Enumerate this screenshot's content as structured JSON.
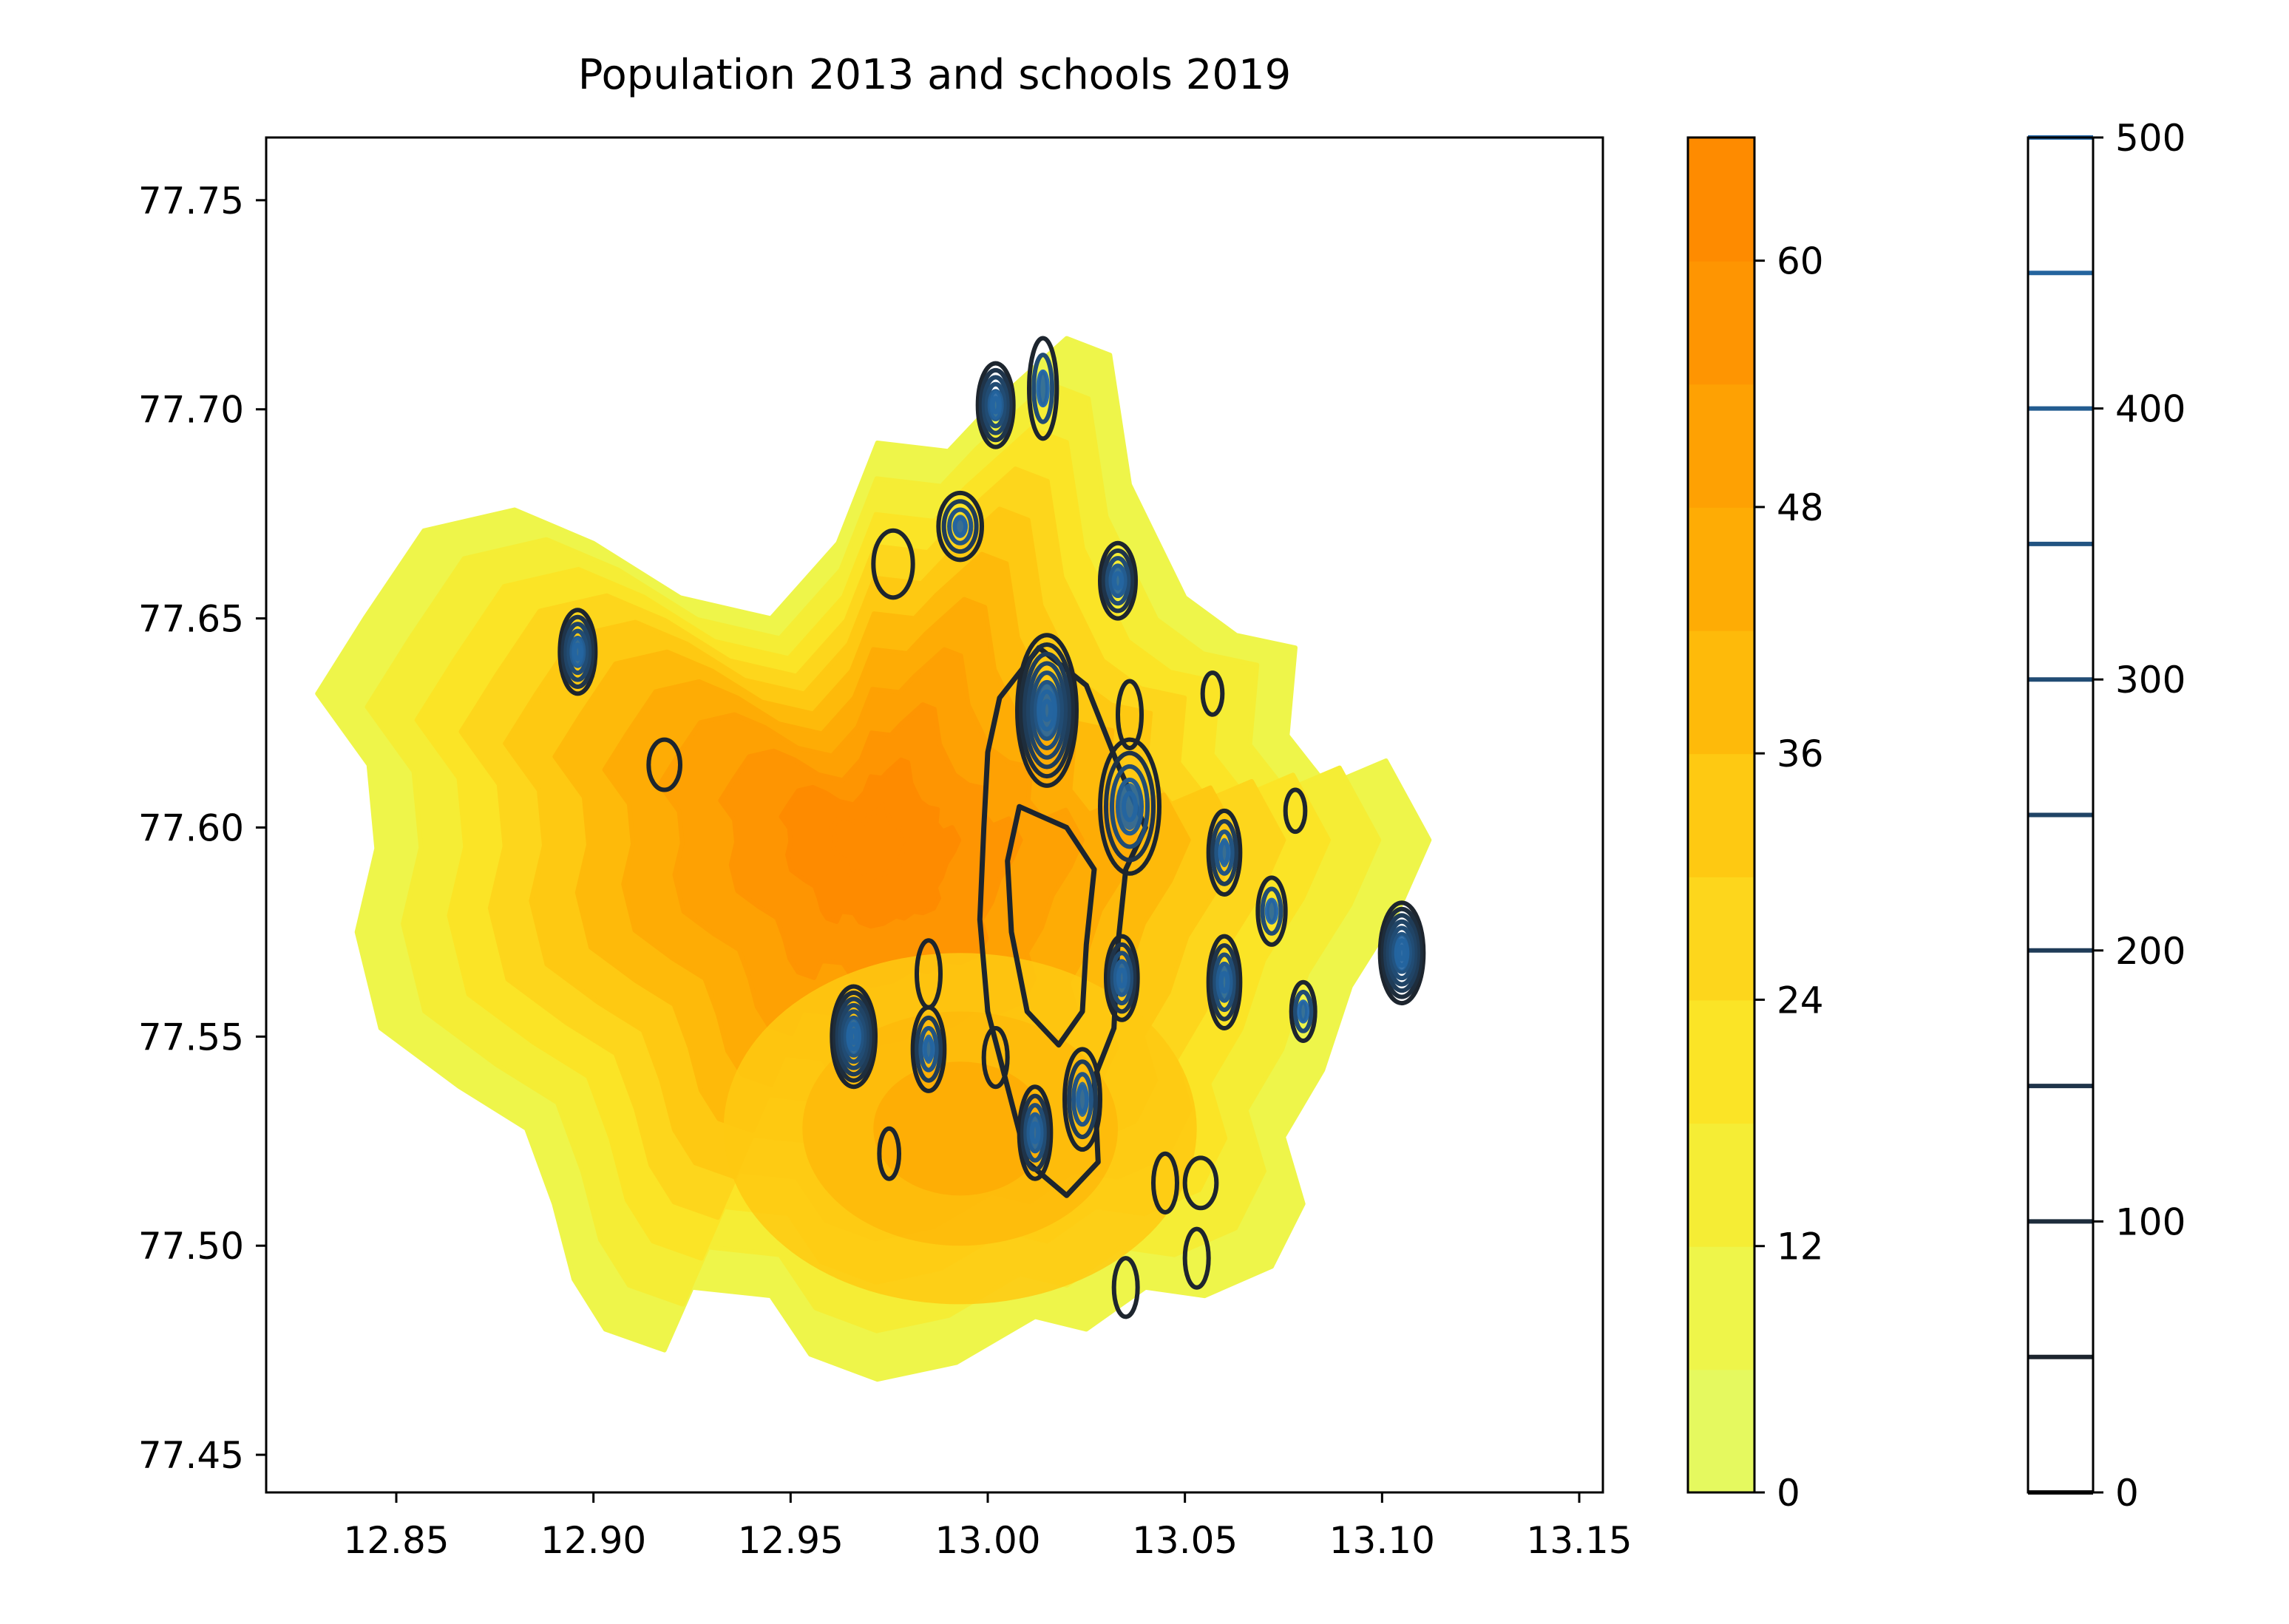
{
  "chart_data": {
    "type": "heatmap",
    "title": "Population 2013 and schools 2019",
    "xlabel": "",
    "ylabel": "",
    "xlim": [
      12.817,
      13.156
    ],
    "ylim": [
      77.441,
      77.765
    ],
    "x_ticks": [
      "12.85",
      "12.90",
      "12.95",
      "13.00",
      "13.05",
      "13.10",
      "13.15"
    ],
    "x_tick_values": [
      12.85,
      12.9,
      12.95,
      13.0,
      13.05,
      13.1,
      13.15
    ],
    "y_ticks": [
      "77.45",
      "77.50",
      "77.55",
      "77.60",
      "77.65",
      "77.70",
      "77.75"
    ],
    "y_tick_values": [
      77.45,
      77.5,
      77.55,
      77.6,
      77.65,
      77.7,
      77.75
    ],
    "grid": false,
    "layers": [
      {
        "name": "population 2013",
        "kind": "filled density contours",
        "colormap": "yellow-to-orange",
        "peak": {
          "x": 12.97,
          "y": 77.597
        },
        "secondary_peak": {
          "x": 12.993,
          "y": 77.528
        }
      },
      {
        "name": "schools 2019",
        "kind": "line density contours",
        "colormap": "dark navy-to-blue",
        "hotspots": [
          {
            "x": 13.015,
            "y": 77.628
          },
          {
            "x": 13.105,
            "y": 77.57
          },
          {
            "x": 12.966,
            "y": 77.55
          },
          {
            "x": 12.896,
            "y": 77.642
          },
          {
            "x": 13.002,
            "y": 77.701
          },
          {
            "x": 13.033,
            "y": 77.659
          },
          {
            "x": 13.036,
            "y": 77.605
          },
          {
            "x": 13.06,
            "y": 77.594
          },
          {
            "x": 13.06,
            "y": 77.563
          },
          {
            "x": 13.012,
            "y": 77.527
          },
          {
            "x": 13.024,
            "y": 77.535
          },
          {
            "x": 12.985,
            "y": 77.547
          },
          {
            "x": 12.993,
            "y": 77.672
          },
          {
            "x": 13.034,
            "y": 77.564
          },
          {
            "x": 13.08,
            "y": 77.556
          },
          {
            "x": 13.072,
            "y": 77.58
          },
          {
            "x": 13.014,
            "y": 77.705
          }
        ]
      }
    ],
    "colorbars": [
      {
        "name": "population",
        "ticks": [
          "0",
          "12",
          "24",
          "36",
          "48",
          "60"
        ],
        "tick_values": [
          0,
          12,
          24,
          36,
          48,
          60
        ],
        "range": [
          0,
          66
        ],
        "colors": [
          "#e5f95f",
          "#eef54a",
          "#f5ed35",
          "#fbe426",
          "#fdd61c",
          "#fec912",
          "#feba0a",
          "#feac05",
          "#fea103",
          "#fe9502",
          "#fe8b00"
        ]
      },
      {
        "name": "schools",
        "ticks": [
          "0",
          "100",
          "200",
          "300",
          "400",
          "500"
        ],
        "tick_values": [
          0,
          100,
          200,
          300,
          400,
          500
        ],
        "range": [
          0,
          500
        ],
        "levels": [
          0,
          50,
          100,
          150,
          200,
          250,
          300,
          350,
          400,
          450,
          500
        ],
        "colors": [
          "#1a1a1a",
          "#1d252e",
          "#1e2d3c",
          "#1f344a",
          "#1f3c58",
          "#204466",
          "#214c74",
          "#225482",
          "#235c90",
          "#24649e",
          "#2a6dac"
        ]
      }
    ]
  }
}
